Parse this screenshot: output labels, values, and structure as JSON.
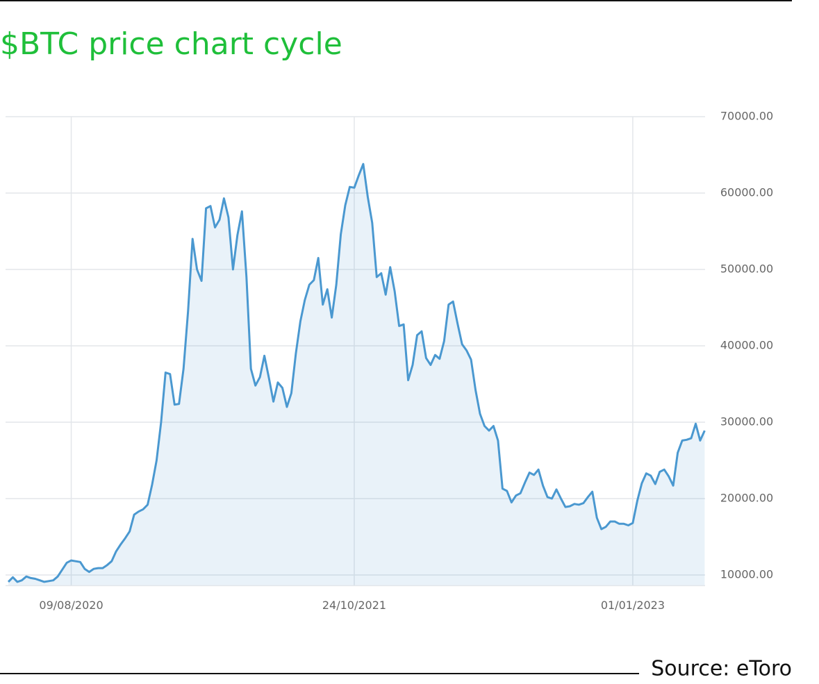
{
  "chart_data": {
    "type": "area",
    "title": "$BTC price chart cycle",
    "source": "Source: eToro",
    "categories": [
      null,
      null,
      null,
      null,
      null,
      null,
      null,
      null,
      null,
      null,
      null,
      null,
      null,
      null,
      "09/08/2020",
      null,
      null,
      null,
      null,
      null,
      null,
      null,
      null,
      null,
      null,
      null,
      null,
      null,
      null,
      null,
      null,
      null,
      null,
      null,
      null,
      null,
      null,
      null,
      null,
      null,
      null,
      null,
      null,
      null,
      null,
      null,
      null,
      null,
      null,
      null,
      null,
      null,
      null,
      null,
      null,
      null,
      null,
      null,
      null,
      null,
      null,
      null,
      null,
      null,
      null,
      null,
      null,
      null,
      null,
      null,
      null,
      null,
      null,
      null,
      null,
      null,
      null,
      "24/10/2021",
      null,
      null,
      null,
      null,
      null,
      null,
      null,
      null,
      null,
      null,
      null,
      null,
      null,
      null,
      null,
      null,
      null,
      null,
      null,
      null,
      null,
      null,
      null,
      null,
      null,
      null,
      null,
      null,
      null,
      null,
      null,
      null,
      null,
      null,
      null,
      null,
      null,
      null,
      null,
      null,
      null,
      null,
      null,
      null,
      null,
      null,
      null,
      null,
      null,
      null,
      null,
      null,
      null,
      null,
      null,
      null,
      null,
      null,
      null,
      null,
      null,
      "01/01/2023",
      null,
      null,
      null,
      null,
      null,
      null,
      null,
      null,
      null,
      null,
      null,
      null,
      null,
      null,
      null,
      null
    ],
    "values": [
      9100,
      9700,
      9100,
      9300,
      9800,
      9600,
      9500,
      9300,
      9100,
      9200,
      9300,
      9800,
      10700,
      11600,
      11900,
      11800,
      11700,
      10800,
      10400,
      10800,
      10900,
      10900,
      11300,
      11800,
      13100,
      14000,
      14800,
      15700,
      17900,
      18300,
      18600,
      19200,
      21800,
      25000,
      30000,
      36500,
      36300,
      32300,
      32400,
      37000,
      44500,
      54000,
      50000,
      48500,
      58000,
      58300,
      55500,
      56500,
      59300,
      56800,
      50000,
      54500,
      57600,
      49000,
      37000,
      34800,
      35900,
      38700,
      35800,
      32700,
      35200,
      34500,
      32000,
      33800,
      39000,
      43200,
      46000,
      48000,
      48600,
      51500,
      45400,
      47400,
      43700,
      48000,
      54600,
      58400,
      60800,
      60700,
      62300,
      63800,
      59500,
      56100,
      49000,
      49500,
      46700,
      50300,
      47100,
      42600,
      42800,
      35500,
      37500,
      41400,
      41900,
      38400,
      37500,
      38800,
      38300,
      40600,
      45400,
      45800,
      42900,
      40200,
      39400,
      38200,
      34200,
      31100,
      29500,
      28900,
      29500,
      27600,
      21300,
      21000,
      19500,
      20400,
      20700,
      22100,
      23400,
      23100,
      23800,
      21700,
      20200,
      20000,
      21200,
      20000,
      18900,
      19000,
      19300,
      19200,
      19400,
      20200,
      20900,
      17500,
      16000,
      16300,
      17000,
      17000,
      16700,
      16700,
      16500,
      16800,
      19700,
      22000,
      23300,
      23000,
      21900,
      23500,
      23800,
      22900,
      21700,
      26000,
      27600,
      27700,
      27900,
      29800,
      27600,
      28900
    ],
    "color": "#4a98d0",
    "ylim": [
      8600,
      70000
    ],
    "yticks": [
      {
        "value": 10000,
        "label": "10000.00"
      },
      {
        "value": 20000,
        "label": "20000.00"
      },
      {
        "value": 30000,
        "label": "30000.00"
      },
      {
        "value": 40000,
        "label": "40000.00"
      },
      {
        "value": 50000,
        "label": "50000.00"
      },
      {
        "value": 60000,
        "label": "60000.00"
      },
      {
        "value": 70000,
        "label": "70000.00"
      }
    ],
    "grid": true
  }
}
